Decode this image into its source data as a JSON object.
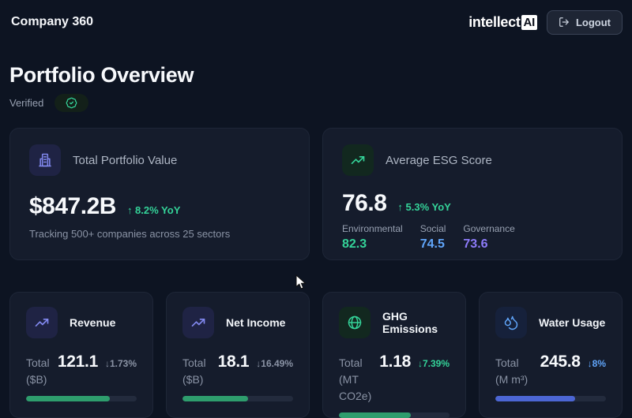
{
  "header": {
    "app_title": "Company 360",
    "logo_text": "intellect",
    "logo_badge": "AI",
    "logout_label": "Logout"
  },
  "page": {
    "title": "Portfolio Overview",
    "verified_label": "Verified"
  },
  "summary_cards": [
    {
      "id": "total-portfolio-value",
      "icon": "building-icon",
      "title": "Total Portfolio Value",
      "value": "$847.2B",
      "change": "↑ 8.2% YoY",
      "subtitle": "Tracking 500+ companies across 25 sectors"
    },
    {
      "id": "average-esg-score",
      "icon": "trending-up-icon",
      "title": "Average ESG Score",
      "value": "76.8",
      "change": "↑ 5.3% YoY",
      "breakdown": [
        {
          "label": "Environmental",
          "value": "82.3",
          "color": "#34d399"
        },
        {
          "label": "Social",
          "value": "74.5",
          "color": "#60a5fa"
        },
        {
          "label": "Governance",
          "value": "73.6",
          "color": "#8d7bfa"
        }
      ]
    }
  ],
  "metric_cards": [
    {
      "id": "revenue",
      "icon": "trending-up-icon",
      "title": "Revenue",
      "label": "Total ($B)",
      "value": "121.1",
      "change": "↓1.73%",
      "change_color": "#8a93a5",
      "progress_pct": 76,
      "bar_color": "#2e9d6d"
    },
    {
      "id": "net-income",
      "icon": "trending-up-icon",
      "title": "Net Income",
      "label": "Total ($B)",
      "value": "18.1",
      "change": "↓16.49%",
      "change_color": "#8a93a5",
      "progress_pct": 59,
      "bar_color": "#2e9d6d"
    },
    {
      "id": "ghg-emissions",
      "icon": "globe-icon",
      "title": "GHG Emissions",
      "label": "Total (MT CO2e)",
      "value": "1.18",
      "change": "↓7.39%",
      "change_color": "#34d399",
      "progress_pct": 65,
      "bar_color": "#2e9d6d"
    },
    {
      "id": "water-usage",
      "icon": "droplets-icon",
      "title": "Water Usage",
      "label": "Total (M m³)",
      "value": "245.8",
      "change": "↓8%",
      "change_color": "#60a5fa",
      "progress_pct": 72,
      "bar_color": "#4c66d4"
    }
  ],
  "colors": {
    "background": "#0d1422",
    "card_background": "#151c2c",
    "accent_green": "#34d399",
    "accent_blue": "#60a5fa",
    "accent_purple": "#8d7bfa",
    "bar_green": "#2e9d6d",
    "bar_blue": "#4c66d4"
  }
}
